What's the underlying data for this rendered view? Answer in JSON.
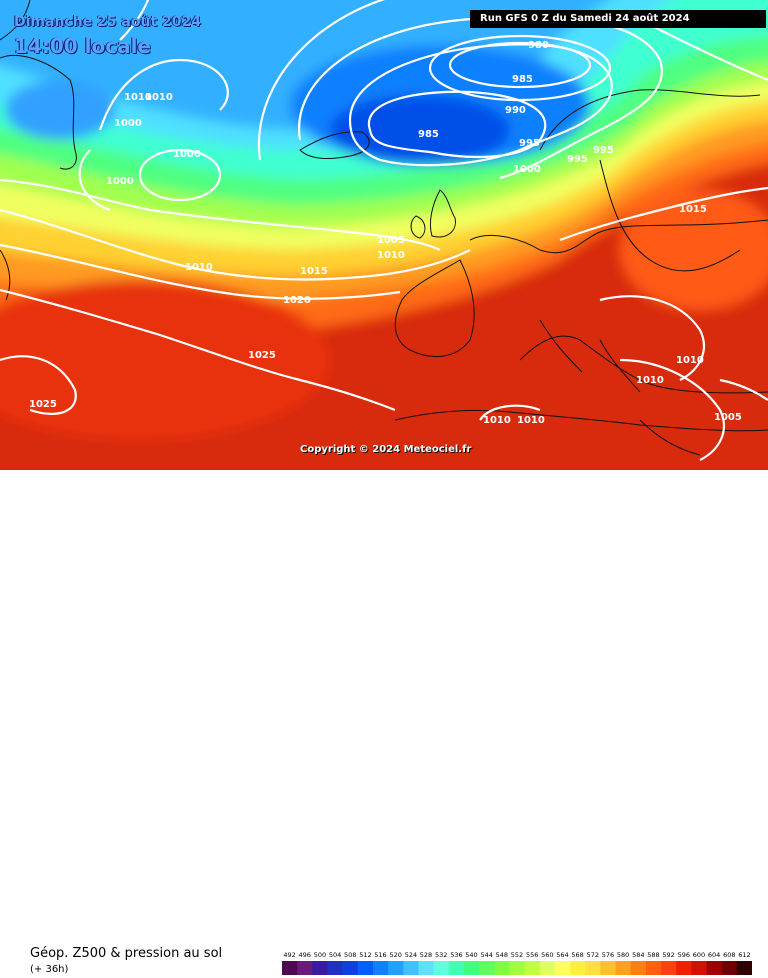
{
  "header": {
    "date": "Dimanche 25 août 2024",
    "time": "14:00 locale",
    "run": "Run GFS 0 Z du Samedi 24 août 2024"
  },
  "copyright": "Copyright © 2024 Meteociel.fr",
  "footer": {
    "caption": "Géop. Z500 & pression au sol",
    "sub_caption": "(+ 36h)"
  },
  "scale": {
    "labels": [
      "492",
      "496",
      "500",
      "504",
      "508",
      "512",
      "516",
      "520",
      "524",
      "528",
      "532",
      "536",
      "540",
      "544",
      "548",
      "552",
      "556",
      "560",
      "564",
      "568",
      "572",
      "576",
      "580",
      "584",
      "588",
      "592",
      "596",
      "600",
      "604",
      "608",
      "612"
    ],
    "colors": [
      "#4d0a50",
      "#6a1a7a",
      "#3a1aa0",
      "#2030c0",
      "#1040e0",
      "#0060ff",
      "#1080ff",
      "#20a0ff",
      "#40c0ff",
      "#60e0ff",
      "#60ffe0",
      "#40ffb0",
      "#40ff80",
      "#60ff60",
      "#80ff40",
      "#a0ff40",
      "#c0ff40",
      "#e0ff60",
      "#ffff60",
      "#fff040",
      "#ffe040",
      "#ffc030",
      "#ffa020",
      "#ff8010",
      "#ff6010",
      "#ff4010",
      "#f02000",
      "#d01000",
      "#a00000",
      "#700000",
      "#300000"
    ]
  },
  "isobar_labels": [
    {
      "text": "980"
    },
    {
      "text": "985"
    },
    {
      "text": "985"
    },
    {
      "text": "990"
    },
    {
      "text": "995"
    },
    {
      "text": "995"
    },
    {
      "text": "995"
    },
    {
      "text": "1000"
    },
    {
      "text": "1000"
    },
    {
      "text": "1000"
    },
    {
      "text": "1000"
    },
    {
      "text": "1005"
    },
    {
      "text": "1010"
    },
    {
      "text": "1010"
    },
    {
      "text": "1010"
    },
    {
      "text": "1015"
    },
    {
      "text": "1015"
    },
    {
      "text": "1020"
    },
    {
      "text": "1025"
    },
    {
      "text": "1025"
    },
    {
      "text": "1010"
    },
    {
      "text": "1010"
    },
    {
      "text": "1010"
    },
    {
      "text": "1010"
    },
    {
      "text": "1005"
    },
    {
      "text": "1010"
    }
  ]
}
